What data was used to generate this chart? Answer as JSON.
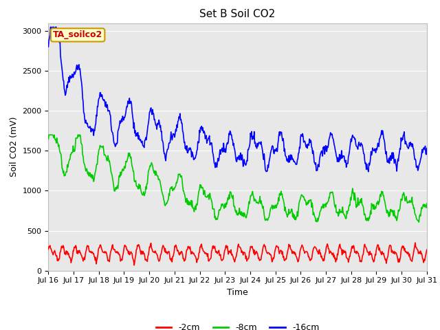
{
  "title": "Set B Soil CO2",
  "xlabel": "Time",
  "ylabel": "Soil CO2 (mV)",
  "ylim": [
    0,
    3100
  ],
  "background_color": "#e8e8e8",
  "figure_bg": "#ffffff",
  "legend_label": "TA_soilco2",
  "legend_bg": "#ffffcc",
  "legend_border": "#cc9900",
  "legend_text_color": "#cc0000",
  "series": {
    "2cm": {
      "color": "#ff0000",
      "label": "-2cm"
    },
    "8cm": {
      "color": "#00cc00",
      "label": "-8cm"
    },
    "16cm": {
      "color": "#0000ff",
      "label": "-16cm"
    }
  },
  "xtick_labels": [
    "Jul 16",
    "Jul 17",
    "Jul 18",
    "Jul 19",
    "Jul 20",
    "Jul 21",
    "Jul 22",
    "Jul 23",
    "Jul 24",
    "Jul 25",
    "Jul 26",
    "Jul 27",
    "Jul 28",
    "Jul 29",
    "Jul 30",
    "Jul 31"
  ],
  "ytick_vals": [
    0,
    500,
    1000,
    1500,
    2000,
    2500,
    3000
  ],
  "grid_color": "#ffffff",
  "title_fontsize": 11,
  "axis_fontsize": 9,
  "tick_fontsize": 8,
  "linewidth": 1.2
}
